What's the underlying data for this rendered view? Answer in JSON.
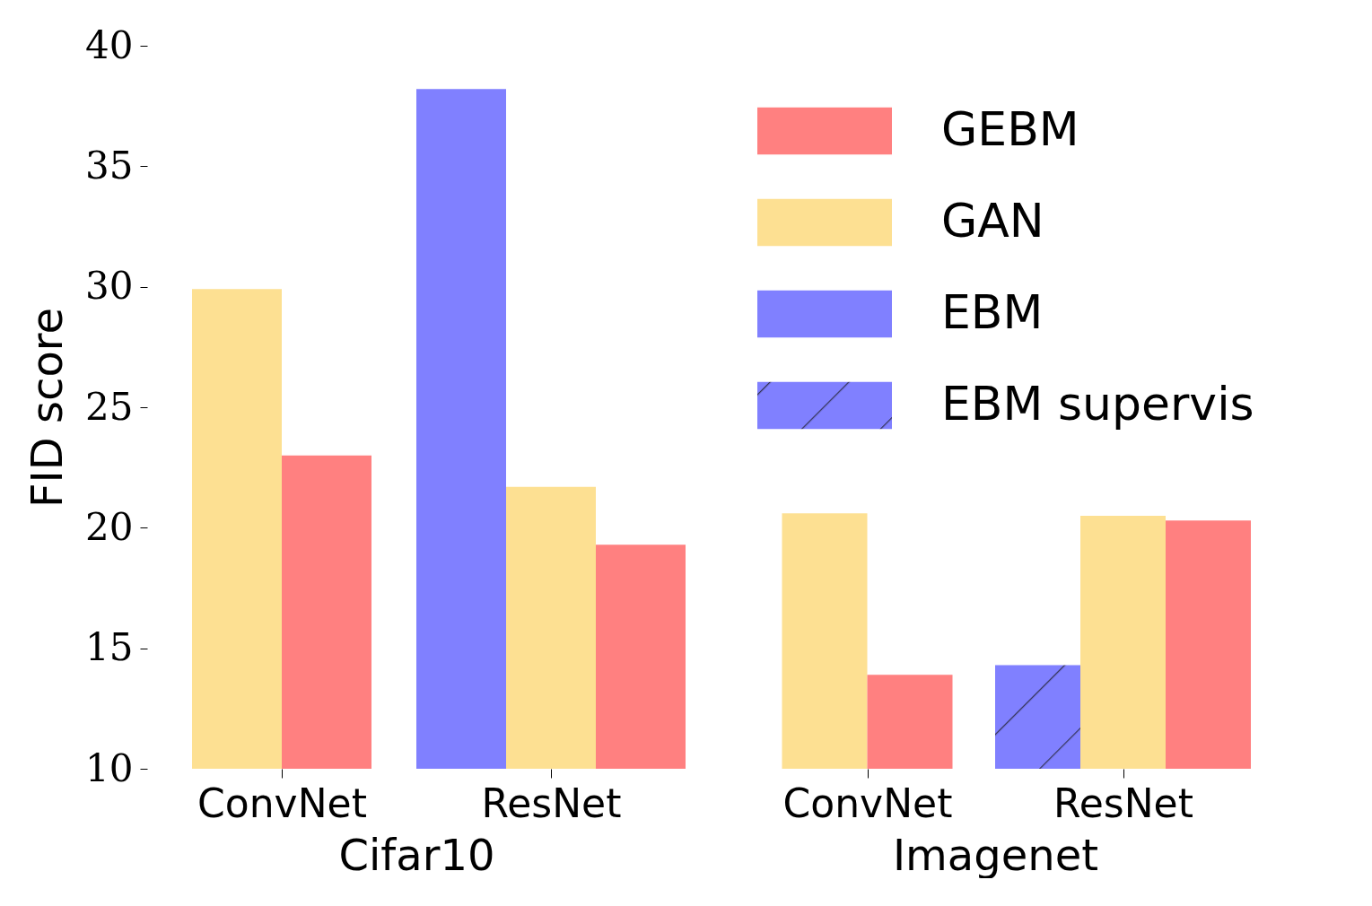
{
  "chart_data": [
    {
      "type": "bar",
      "xlabel": "Cifar10",
      "ylabel": "FID score",
      "categories": [
        "ConvNet",
        "ResNet"
      ],
      "ylim": [
        10,
        40
      ],
      "yticks": [
        10,
        15,
        20,
        25,
        30,
        35,
        40
      ],
      "grid": false,
      "series": [
        {
          "color": "#ff8080",
          "values": [
            23.0,
            19.3
          ]
        },
        {
          "color": "#fde092",
          "values": [
            29.9,
            21.7
          ]
        },
        {
          "color": "#8080ff",
          "values": [
            null,
            38.2
          ]
        },
        {
          "color": "#8080ff",
          "values": [
            null,
            null
          ]
        }
      ]
    },
    {
      "type": "bar",
      "xlabel": "Imagenet",
      "categories": [
        "ConvNet",
        "ResNet"
      ],
      "ylim": [
        10,
        40
      ],
      "tick_labels": "x",
      "grid": false,
      "legend": "top right",
      "series": [
        {
          "name": "GEBM",
          "color": "#ff8080",
          "values": [
            13.9,
            20.3
          ]
        },
        {
          "name": "GAN",
          "color": "#fde092",
          "values": [
            20.6,
            20.5
          ]
        },
        {
          "name": "EBM",
          "color": "#8080ff",
          "values": [
            null,
            null
          ]
        },
        {
          "name": "EBM supervis",
          "color": "#8080ff",
          "values": [
            null,
            14.3
          ]
        }
      ]
    }
  ]
}
